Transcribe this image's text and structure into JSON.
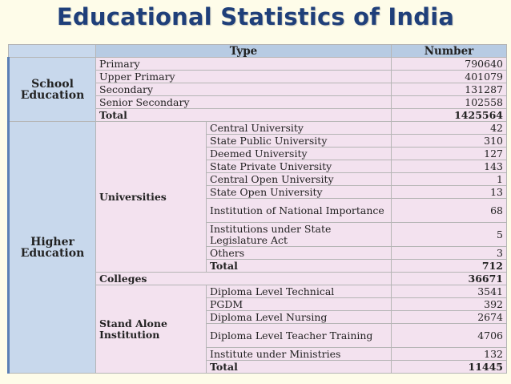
{
  "title": "Educational Statistics of India",
  "header": {
    "type": "Type",
    "number": "Number"
  },
  "school": {
    "label_line1": "School",
    "label_line2": "Education",
    "rows": [
      {
        "type": "Primary",
        "number": "790640"
      },
      {
        "type": "Upper Primary",
        "number": "401079"
      },
      {
        "type": "Secondary",
        "number": "131287"
      },
      {
        "type": "Senior Secondary",
        "number": "102558"
      }
    ],
    "total": {
      "type": "Total",
      "number": "1425564"
    }
  },
  "higher": {
    "label_line1": "Higher",
    "label_line2": "Education",
    "universities": {
      "label": "Universities",
      "rows": [
        {
          "type": "Central University",
          "number": "42"
        },
        {
          "type": "State Public University",
          "number": "310"
        },
        {
          "type": "Deemed University",
          "number": "127"
        },
        {
          "type": "State Private University",
          "number": "143"
        },
        {
          "type": "Central Open University",
          "number": "1"
        },
        {
          "type": "State Open University",
          "number": "13"
        },
        {
          "type": "Institution of National Importance",
          "number": "68"
        },
        {
          "type": "Institutions under State Legislature Act",
          "number": "5"
        },
        {
          "type": "Others",
          "number": "3"
        }
      ],
      "total": {
        "type": "Total",
        "number": "712"
      }
    },
    "colleges": {
      "label": "Colleges",
      "number": "36671"
    },
    "standalone": {
      "label_line1": "Stand Alone",
      "label_line2": "Institution",
      "rows": [
        {
          "type": "Diploma Level Technical",
          "number": "3541"
        },
        {
          "type": "PGDM",
          "number": "392"
        },
        {
          "type": "Diploma Level Nursing",
          "number": "2674"
        },
        {
          "type": "Diploma Level Teacher Training",
          "number": "4706"
        },
        {
          "type": "Institute under Ministries",
          "number": "132"
        }
      ],
      "total": {
        "type": "Total",
        "number": "11445"
      }
    }
  }
}
